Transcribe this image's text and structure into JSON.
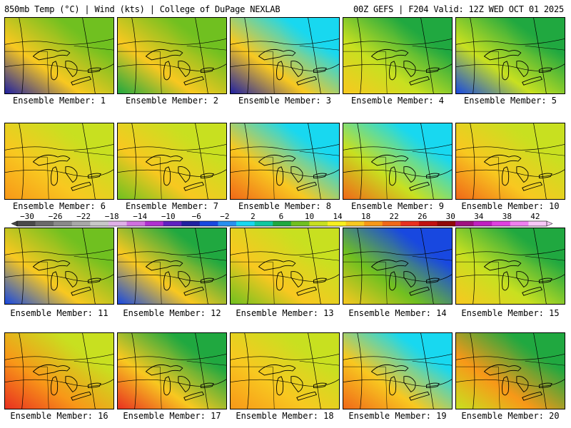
{
  "header": {
    "left": "850mb Temp (°C) | Wind (kts) | College of DuPage NEXLAB",
    "right": "00Z GEFS | F204 Valid: 12Z WED OCT 01 2025"
  },
  "member_label_prefix": "Ensemble Member: ",
  "members": [
    1,
    2,
    3,
    4,
    5,
    6,
    7,
    8,
    9,
    10,
    11,
    12,
    13,
    14,
    15,
    16,
    17,
    18,
    19,
    20
  ],
  "colorbar": {
    "ticks": [
      "−30",
      "−26",
      "−22",
      "−18",
      "−14",
      "−10",
      "−6",
      "−2",
      "2",
      "6",
      "10",
      "14",
      "18",
      "22",
      "26",
      "30",
      "34",
      "38",
      "42"
    ],
    "colors": [
      "#4a4a4a",
      "#6a6a6a",
      "#8a8a8a",
      "#a8a8a8",
      "#c8c8c8",
      "#e0b0e8",
      "#d070e0",
      "#b030d0",
      "#6020c0",
      "#2020a0",
      "#1848e0",
      "#2890f0",
      "#18d8f0",
      "#10c8a0",
      "#20a840",
      "#70c020",
      "#c8e020",
      "#f8f020",
      "#f8c820",
      "#f89818",
      "#f06818",
      "#e83020",
      "#c01010",
      "#900808",
      "#a01080",
      "#c020c0",
      "#e040e0",
      "#f080f0",
      "#f8c8f8"
    ]
  }
}
